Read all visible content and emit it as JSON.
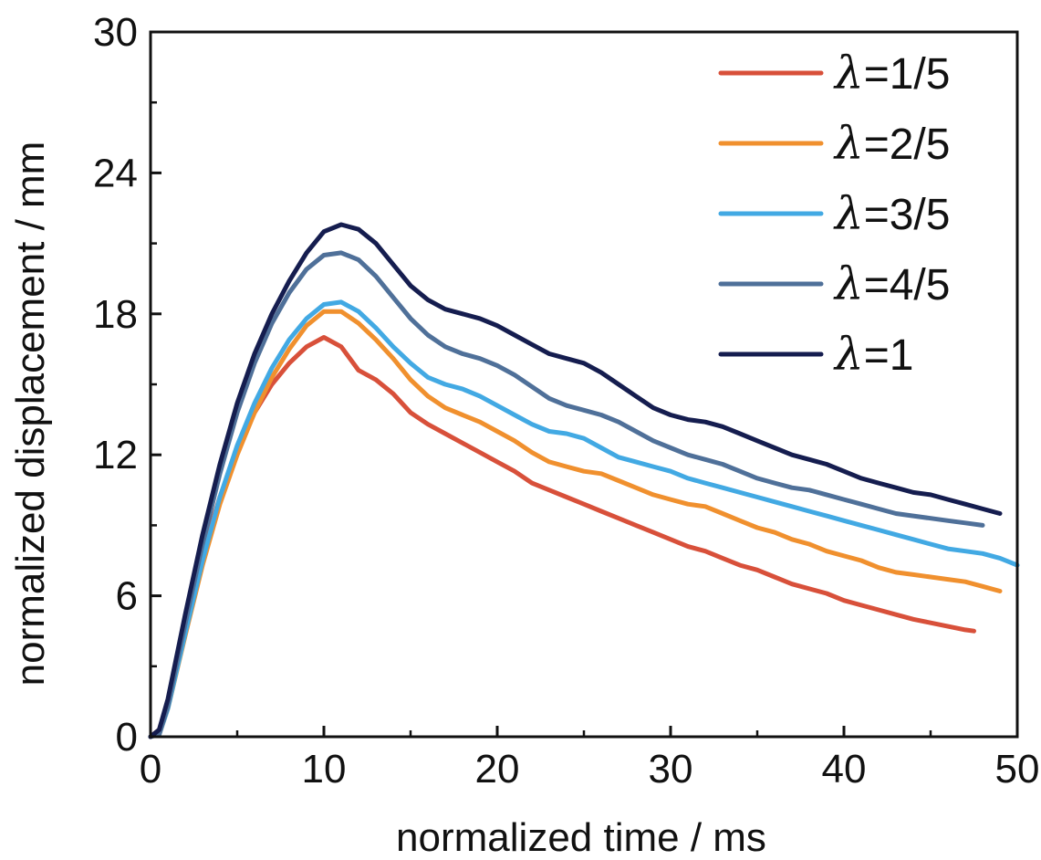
{
  "chart_data": {
    "type": "line",
    "xlabel": "normalized time / ms",
    "ylabel": "normalized displacement / mm",
    "xlim": [
      0,
      50
    ],
    "ylim": [
      0,
      30
    ],
    "xticks": [
      "0",
      "10",
      "20",
      "30",
      "40",
      "50"
    ],
    "yticks": [
      "0",
      "6",
      "12",
      "18",
      "24",
      "30"
    ],
    "grid": false,
    "legend_position": "top-right",
    "series": [
      {
        "name": "λ=1/5",
        "label_symbol": "λ",
        "label_rest": "=1/5",
        "color": "#d8503a",
        "points": [
          [
            0,
            0
          ],
          [
            0.5,
            0.3
          ],
          [
            1,
            1.5
          ],
          [
            2,
            4.8
          ],
          [
            3,
            7.8
          ],
          [
            4,
            10.2
          ],
          [
            5,
            12.2
          ],
          [
            6,
            13.8
          ],
          [
            7,
            15.0
          ],
          [
            8,
            15.9
          ],
          [
            9,
            16.6
          ],
          [
            10,
            17.0
          ],
          [
            11,
            16.6
          ],
          [
            12,
            15.6
          ],
          [
            13,
            15.2
          ],
          [
            14,
            14.6
          ],
          [
            15,
            13.8
          ],
          [
            16,
            13.3
          ],
          [
            17,
            12.9
          ],
          [
            18,
            12.5
          ],
          [
            19,
            12.1
          ],
          [
            20,
            11.7
          ],
          [
            21,
            11.3
          ],
          [
            22,
            10.8
          ],
          [
            23,
            10.5
          ],
          [
            24,
            10.2
          ],
          [
            25,
            9.9
          ],
          [
            26,
            9.6
          ],
          [
            27,
            9.3
          ],
          [
            28,
            9.0
          ],
          [
            29,
            8.7
          ],
          [
            30,
            8.4
          ],
          [
            31,
            8.1
          ],
          [
            32,
            7.9
          ],
          [
            33,
            7.6
          ],
          [
            34,
            7.3
          ],
          [
            35,
            7.1
          ],
          [
            36,
            6.8
          ],
          [
            37,
            6.5
          ],
          [
            38,
            6.3
          ],
          [
            39,
            6.1
          ],
          [
            40,
            5.8
          ],
          [
            41,
            5.6
          ],
          [
            42,
            5.4
          ],
          [
            43,
            5.2
          ],
          [
            44,
            5.0
          ],
          [
            45,
            4.85
          ],
          [
            46,
            4.7
          ],
          [
            47,
            4.55
          ],
          [
            47.5,
            4.5
          ]
        ]
      },
      {
        "name": "λ=2/5",
        "label_symbol": "λ",
        "label_rest": "=2/5",
        "color": "#f0902e",
        "points": [
          [
            0,
            0
          ],
          [
            0.5,
            0.1
          ],
          [
            1,
            1.2
          ],
          [
            2,
            4.3
          ],
          [
            3,
            7.3
          ],
          [
            4,
            9.9
          ],
          [
            5,
            12.0
          ],
          [
            6,
            13.8
          ],
          [
            7,
            15.3
          ],
          [
            8,
            16.5
          ],
          [
            9,
            17.5
          ],
          [
            10,
            18.1
          ],
          [
            11,
            18.1
          ],
          [
            12,
            17.6
          ],
          [
            13,
            16.9
          ],
          [
            14,
            16.1
          ],
          [
            15,
            15.2
          ],
          [
            16,
            14.5
          ],
          [
            17,
            14.0
          ],
          [
            18,
            13.7
          ],
          [
            19,
            13.4
          ],
          [
            20,
            13.0
          ],
          [
            21,
            12.6
          ],
          [
            22,
            12.1
          ],
          [
            23,
            11.7
          ],
          [
            24,
            11.5
          ],
          [
            25,
            11.3
          ],
          [
            26,
            11.2
          ],
          [
            27,
            10.9
          ],
          [
            28,
            10.6
          ],
          [
            29,
            10.3
          ],
          [
            30,
            10.1
          ],
          [
            31,
            9.9
          ],
          [
            32,
            9.8
          ],
          [
            33,
            9.5
          ],
          [
            34,
            9.2
          ],
          [
            35,
            8.9
          ],
          [
            36,
            8.7
          ],
          [
            37,
            8.4
          ],
          [
            38,
            8.2
          ],
          [
            39,
            7.9
          ],
          [
            40,
            7.7
          ],
          [
            41,
            7.5
          ],
          [
            42,
            7.2
          ],
          [
            43,
            7.0
          ],
          [
            44,
            6.9
          ],
          [
            45,
            6.8
          ],
          [
            46,
            6.7
          ],
          [
            47,
            6.6
          ],
          [
            48,
            6.4
          ],
          [
            49,
            6.2
          ]
        ]
      },
      {
        "name": "λ=3/5",
        "label_symbol": "λ",
        "label_rest": "=3/5",
        "color": "#42a9e3",
        "points": [
          [
            0,
            0
          ],
          [
            0.5,
            0.1
          ],
          [
            1,
            1.2
          ],
          [
            2,
            4.4
          ],
          [
            3,
            7.5
          ],
          [
            4,
            10.2
          ],
          [
            5,
            12.4
          ],
          [
            6,
            14.2
          ],
          [
            7,
            15.7
          ],
          [
            8,
            16.9
          ],
          [
            9,
            17.8
          ],
          [
            10,
            18.4
          ],
          [
            11,
            18.5
          ],
          [
            12,
            18.1
          ],
          [
            13,
            17.4
          ],
          [
            14,
            16.6
          ],
          [
            15,
            15.9
          ],
          [
            16,
            15.3
          ],
          [
            17,
            15.0
          ],
          [
            18,
            14.8
          ],
          [
            19,
            14.5
          ],
          [
            20,
            14.1
          ],
          [
            21,
            13.7
          ],
          [
            22,
            13.3
          ],
          [
            23,
            13.0
          ],
          [
            24,
            12.9
          ],
          [
            25,
            12.7
          ],
          [
            26,
            12.3
          ],
          [
            27,
            11.9
          ],
          [
            28,
            11.7
          ],
          [
            29,
            11.5
          ],
          [
            30,
            11.3
          ],
          [
            31,
            11.0
          ],
          [
            32,
            10.8
          ],
          [
            33,
            10.6
          ],
          [
            34,
            10.4
          ],
          [
            35,
            10.2
          ],
          [
            36,
            10.0
          ],
          [
            37,
            9.8
          ],
          [
            38,
            9.6
          ],
          [
            39,
            9.4
          ],
          [
            40,
            9.2
          ],
          [
            41,
            9.0
          ],
          [
            42,
            8.8
          ],
          [
            43,
            8.6
          ],
          [
            44,
            8.4
          ],
          [
            45,
            8.2
          ],
          [
            46,
            8.0
          ],
          [
            47,
            7.9
          ],
          [
            48,
            7.8
          ],
          [
            49,
            7.6
          ],
          [
            50,
            7.3
          ]
        ]
      },
      {
        "name": "λ=4/5",
        "label_symbol": "λ",
        "label_rest": "=4/5",
        "color": "#4f7099",
        "points": [
          [
            0,
            0
          ],
          [
            0.5,
            0.1
          ],
          [
            1,
            1.3
          ],
          [
            2,
            4.8
          ],
          [
            3,
            8.2
          ],
          [
            4,
            11.2
          ],
          [
            5,
            13.8
          ],
          [
            6,
            15.9
          ],
          [
            7,
            17.6
          ],
          [
            8,
            18.9
          ],
          [
            9,
            19.9
          ],
          [
            10,
            20.5
          ],
          [
            11,
            20.6
          ],
          [
            12,
            20.3
          ],
          [
            13,
            19.6
          ],
          [
            14,
            18.7
          ],
          [
            15,
            17.8
          ],
          [
            16,
            17.1
          ],
          [
            17,
            16.6
          ],
          [
            18,
            16.3
          ],
          [
            19,
            16.1
          ],
          [
            20,
            15.8
          ],
          [
            21,
            15.4
          ],
          [
            22,
            14.9
          ],
          [
            23,
            14.4
          ],
          [
            24,
            14.1
          ],
          [
            25,
            13.9
          ],
          [
            26,
            13.7
          ],
          [
            27,
            13.4
          ],
          [
            28,
            13.0
          ],
          [
            29,
            12.6
          ],
          [
            30,
            12.3
          ],
          [
            31,
            12.0
          ],
          [
            32,
            11.8
          ],
          [
            33,
            11.6
          ],
          [
            34,
            11.3
          ],
          [
            35,
            11.0
          ],
          [
            36,
            10.8
          ],
          [
            37,
            10.6
          ],
          [
            38,
            10.5
          ],
          [
            39,
            10.3
          ],
          [
            40,
            10.1
          ],
          [
            41,
            9.9
          ],
          [
            42,
            9.7
          ],
          [
            43,
            9.5
          ],
          [
            44,
            9.4
          ],
          [
            45,
            9.3
          ],
          [
            46,
            9.2
          ],
          [
            47,
            9.1
          ],
          [
            48,
            9.0
          ]
        ]
      },
      {
        "name": "λ=1",
        "label_symbol": "λ",
        "label_rest": "=1",
        "color": "#151d4f",
        "points": [
          [
            0,
            0
          ],
          [
            0.5,
            0.3
          ],
          [
            1,
            1.6
          ],
          [
            2,
            5.2
          ],
          [
            3,
            8.6
          ],
          [
            4,
            11.6
          ],
          [
            5,
            14.2
          ],
          [
            6,
            16.3
          ],
          [
            7,
            18.0
          ],
          [
            8,
            19.4
          ],
          [
            9,
            20.6
          ],
          [
            10,
            21.5
          ],
          [
            11,
            21.8
          ],
          [
            12,
            21.6
          ],
          [
            13,
            21.0
          ],
          [
            14,
            20.1
          ],
          [
            15,
            19.2
          ],
          [
            16,
            18.6
          ],
          [
            17,
            18.2
          ],
          [
            18,
            18.0
          ],
          [
            19,
            17.8
          ],
          [
            20,
            17.5
          ],
          [
            21,
            17.1
          ],
          [
            22,
            16.7
          ],
          [
            23,
            16.3
          ],
          [
            24,
            16.1
          ],
          [
            25,
            15.9
          ],
          [
            26,
            15.5
          ],
          [
            27,
            15.0
          ],
          [
            28,
            14.5
          ],
          [
            29,
            14.0
          ],
          [
            30,
            13.7
          ],
          [
            31,
            13.5
          ],
          [
            32,
            13.4
          ],
          [
            33,
            13.2
          ],
          [
            34,
            12.9
          ],
          [
            35,
            12.6
          ],
          [
            36,
            12.3
          ],
          [
            37,
            12.0
          ],
          [
            38,
            11.8
          ],
          [
            39,
            11.6
          ],
          [
            40,
            11.3
          ],
          [
            41,
            11.0
          ],
          [
            42,
            10.8
          ],
          [
            43,
            10.6
          ],
          [
            44,
            10.4
          ],
          [
            45,
            10.3
          ],
          [
            46,
            10.1
          ],
          [
            47,
            9.9
          ],
          [
            48,
            9.7
          ],
          [
            49,
            9.5
          ]
        ]
      }
    ]
  }
}
